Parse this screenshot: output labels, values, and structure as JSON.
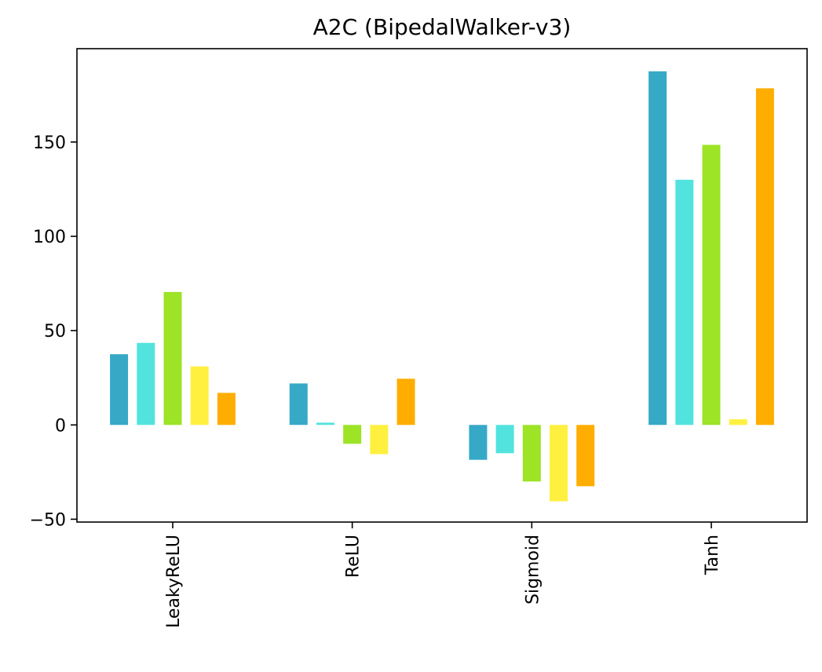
{
  "chart_data": {
    "type": "bar",
    "title": "A2C (BipedalWalker-v3)",
    "xlabel": "",
    "ylabel": "",
    "categories": [
      "LeakyReLU",
      "ReLU",
      "Sigmoid",
      "Tanh"
    ],
    "series": [
      {
        "color": "#36a9c7",
        "values": [
          37.5,
          22.0,
          -18.5,
          187.5
        ]
      },
      {
        "color": "#52e3de",
        "values": [
          43.5,
          1.2,
          -15.0,
          130.0
        ]
      },
      {
        "color": "#9de326",
        "values": [
          70.5,
          -10.0,
          -30.0,
          148.5
        ]
      },
      {
        "color": "#fff040",
        "values": [
          31.0,
          -15.5,
          -40.5,
          3.0
        ]
      },
      {
        "color": "#ffad00",
        "values": [
          17.0,
          24.5,
          -32.5,
          178.5
        ]
      }
    ],
    "yticks": [
      -50,
      0,
      50,
      100,
      150
    ],
    "ylim": [
      -51.5,
      199.5
    ],
    "grid": false,
    "legend": "none"
  }
}
